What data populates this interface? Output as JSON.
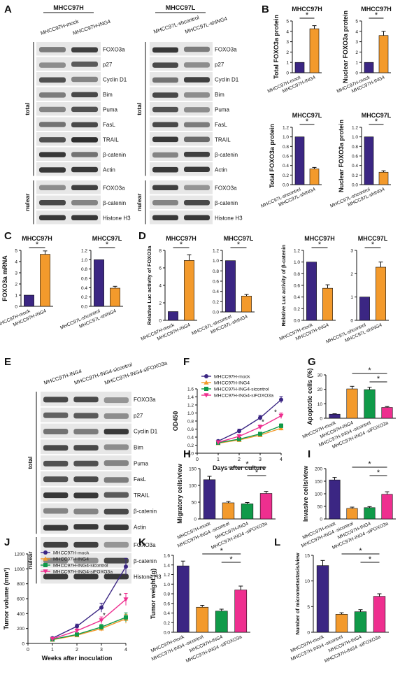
{
  "palette": {
    "purple": "#3b2683",
    "orange": "#f39a2c",
    "green": "#109a49",
    "pink": "#ee2f8f",
    "black": "#111111"
  },
  "panel_letters": [
    "A",
    "B",
    "C",
    "D",
    "E",
    "F",
    "G",
    "H",
    "I",
    "J",
    "K",
    "L"
  ],
  "blots": {
    "A_left": {
      "header": "MHCC97H",
      "lanes": [
        "MHCC97H-mock",
        "MHCC97H-ING4"
      ],
      "total_label": "total",
      "nuclear_label": "nulear",
      "total_proteins": [
        "FOXO3a",
        "p27",
        "Cyclin D1",
        "Bim",
        "Puma",
        "FasL",
        "TRAIL",
        "β-catenin",
        "Actin"
      ],
      "nuclear_proteins": [
        "FOXO3a",
        "β-catenin",
        "Histone H3"
      ]
    },
    "A_right": {
      "header": "MHCC97L",
      "lanes": [
        "MHCC97L-shcontrol",
        "MHCC97L-shING4"
      ],
      "total_label": "total",
      "nuclear_label": "nulear",
      "total_proteins": [
        "FOXO3a",
        "p27",
        "Cyclin D1",
        "Bim",
        "Puma",
        "FasL",
        "TRAIL",
        "β-catenin",
        "Actin"
      ],
      "nuclear_proteins": [
        "FOXO3a",
        "β-catenin",
        "Histone H3"
      ]
    },
    "E": {
      "lanes": [
        "MHCC97H-ING4",
        "MHCC97H-ING4-sicontrol",
        "MHCC97H-ING4-siFOXO3a"
      ],
      "total_label": "total",
      "nuclear_label": "nulear",
      "total_proteins": [
        "FOXO3a",
        "p27",
        "Cyclin D1",
        "Bim",
        "Puma",
        "FasL",
        "TRAIL",
        "β-catenin",
        "Actin"
      ],
      "nuclear_proteins": [
        "FOXO3a",
        "β-catenin",
        "Histone H3"
      ]
    }
  },
  "chart_data": [
    {
      "id": "B1",
      "panel": "B",
      "type": "bar",
      "title": "MHCC97H",
      "ylabel": "Total FOXO3a protein",
      "ylim": [
        0,
        5
      ],
      "yticks": [
        0,
        1,
        2,
        3,
        4,
        5
      ],
      "categories": [
        "MHCC97H-mock",
        "MHCC97H-ING4"
      ],
      "values": [
        1,
        4.25
      ],
      "errors": [
        0,
        0.3
      ],
      "sig": [
        [
          "0",
          "1"
        ]
      ]
    },
    {
      "id": "B2",
      "panel": "B",
      "type": "bar",
      "title": "MHCC97H",
      "ylabel": "Nuclear FOXO3a protein",
      "ylim": [
        0,
        5
      ],
      "yticks": [
        0,
        1,
        2,
        3,
        4,
        5
      ],
      "categories": [
        "MHCC97H-mock",
        "MHCC97H-ING4"
      ],
      "values": [
        1,
        3.6
      ],
      "errors": [
        0,
        0.4
      ],
      "sig": [
        [
          "0",
          "1"
        ]
      ]
    },
    {
      "id": "B3",
      "panel": "B",
      "type": "bar",
      "title": "MHCC97L",
      "ylabel": "Total FOXO3a protein",
      "ylim": [
        0,
        1.2
      ],
      "yticks": [
        "0.0",
        "0.2",
        "0.4",
        "0.6",
        "0.8",
        "1.0",
        "1.2"
      ],
      "categories": [
        "MHCC97L-shcontrol",
        "MHCC97L-shING4"
      ],
      "values": [
        1,
        0.33
      ],
      "errors": [
        0,
        0.03
      ],
      "sig": [
        [
          "0",
          "1"
        ]
      ]
    },
    {
      "id": "B4",
      "panel": "B",
      "type": "bar",
      "title": "MHCC97L",
      "ylabel": "Nuclear FOXO3a protein",
      "ylim": [
        0,
        1.2
      ],
      "yticks": [
        "0.0",
        "0.2",
        "0.4",
        "0.6",
        "0.8",
        "1.0",
        "1.2"
      ],
      "categories": [
        "MHCC97L-shcontrol",
        "MHCC97L-shING4"
      ],
      "values": [
        1,
        0.26
      ],
      "errors": [
        0,
        0.03
      ],
      "sig": [
        [
          "0",
          "1"
        ]
      ]
    },
    {
      "id": "C1",
      "panel": "C",
      "type": "bar",
      "title": "MHCC97H",
      "ylabel": "FOXO3a mRNA",
      "ylim": [
        0,
        5
      ],
      "yticks": [
        0,
        1,
        2,
        3,
        4,
        5
      ],
      "categories": [
        "MHCC97H-mock",
        "MHCC97H-ING4"
      ],
      "values": [
        1,
        4.65
      ],
      "errors": [
        0,
        0.3
      ],
      "sig": [
        [
          "0",
          "1"
        ]
      ]
    },
    {
      "id": "C2",
      "panel": "C",
      "type": "bar",
      "title": "MHCC97L",
      "ylabel": "",
      "ylim": [
        0,
        1.2
      ],
      "yticks": [
        "0.0",
        "0.2",
        "0.4",
        "0.6",
        "0.8",
        "1.0",
        "1.2"
      ],
      "categories": [
        "MHCC97L-shcontrol",
        "MHCC97L-shING4"
      ],
      "values": [
        1,
        0.39
      ],
      "errors": [
        0,
        0.04
      ],
      "sig": [
        [
          "0",
          "1"
        ]
      ]
    },
    {
      "id": "D1",
      "panel": "D",
      "type": "bar",
      "title": "MHCC97H",
      "ylabel": "Relative Luc activity of FOXO3a",
      "ylim": [
        0,
        8
      ],
      "yticks": [
        0,
        2,
        4,
        6,
        8
      ],
      "categories": [
        "MHCC97H-mock",
        "MHCC97H-ING4"
      ],
      "values": [
        1,
        6.85
      ],
      "errors": [
        0,
        0.65
      ],
      "sig": [
        [
          "0",
          "1"
        ]
      ]
    },
    {
      "id": "D2",
      "panel": "D",
      "type": "bar",
      "title": "MHCC97L",
      "ylabel": "",
      "ylim": [
        0,
        1.2
      ],
      "yticks": [
        "0.0",
        "0.2",
        "0.4",
        "0.6",
        "0.8",
        "1.0",
        "1.2"
      ],
      "categories": [
        "MHCC97L-shcontrol",
        "MHCC97L-shING4"
      ],
      "values": [
        1,
        0.31
      ],
      "errors": [
        0,
        0.03
      ],
      "sig": [
        [
          "0",
          "1"
        ]
      ]
    },
    {
      "id": "D3",
      "panel": "D",
      "type": "bar",
      "title": "MHCC97H",
      "ylabel": "Relative Luc activity of β-catenin",
      "ylim": [
        0,
        1.2
      ],
      "yticks": [
        "0.0",
        "0.2",
        "0.4",
        "0.6",
        "0.8",
        "1.0",
        "1.2"
      ],
      "categories": [
        "MHCC97H-mock",
        "MHCC97H-ING4"
      ],
      "values": [
        1,
        0.55
      ],
      "errors": [
        0,
        0.06
      ],
      "sig": [
        [
          "0",
          "1"
        ]
      ]
    },
    {
      "id": "D4",
      "panel": "D",
      "type": "bar",
      "title": "MHCC97L",
      "ylabel": "",
      "ylim": [
        0,
        3
      ],
      "yticks": [
        0,
        1,
        2,
        3
      ],
      "categories": [
        "MHCC97L-shcontrol",
        "MHCC97L-shING4"
      ],
      "values": [
        1,
        2.28
      ],
      "errors": [
        0,
        0.22
      ],
      "sig": [
        [
          "0",
          "1"
        ]
      ]
    },
    {
      "id": "F",
      "panel": "F",
      "type": "line",
      "title": "",
      "xlabel": "Days after culture",
      "ylabel": "OD450",
      "xlim": [
        0,
        4
      ],
      "ylim": [
        0,
        1.6
      ],
      "xticks": [
        0,
        1,
        2,
        3,
        4
      ],
      "yticks": [
        "0.0",
        "0.2",
        "0.4",
        "0.6",
        "0.8",
        "1.0",
        "1.2",
        "1.4",
        "1.6"
      ],
      "x": [
        1,
        2,
        3,
        4
      ],
      "series": [
        {
          "name": "MHCC97H-mock",
          "color": "#3b2683",
          "marker": "circle",
          "values": [
            0.3,
            0.55,
            0.88,
            1.33
          ],
          "errors": [
            0.03,
            0.05,
            0.06,
            0.08
          ]
        },
        {
          "name": "MHCC97H-ING4",
          "color": "#f39a2c",
          "marker": "triangle-up",
          "values": [
            0.25,
            0.33,
            0.45,
            0.62
          ],
          "errors": [
            0.02,
            0.03,
            0.04,
            0.05
          ]
        },
        {
          "name": "MHCC97H-ING4-sicontrol",
          "color": "#109a49",
          "marker": "square",
          "values": [
            0.26,
            0.35,
            0.48,
            0.68
          ],
          "errors": [
            0.02,
            0.03,
            0.04,
            0.05
          ]
        },
        {
          "name": "MHCC97H-ING4-siFOXO3a",
          "color": "#ee2f8f",
          "marker": "triangle-down",
          "values": [
            0.27,
            0.42,
            0.65,
            0.93
          ],
          "errors": [
            0.03,
            0.04,
            0.05,
            0.07
          ]
        }
      ],
      "sig_text": [
        "*",
        "*"
      ]
    },
    {
      "id": "G",
      "panel": "G",
      "type": "bar",
      "title": "",
      "ylabel": "Apoptotic cells (%)",
      "ylim": [
        0,
        30
      ],
      "yticks": [
        0,
        10,
        20,
        30
      ],
      "categories": [
        "MHCC97H-mock",
        "MHCC97H-ING4",
        "MHCC97H-ING4 -sicontrol",
        "MHCC97H-ING4 -siFOXO3a"
      ],
      "values": [
        2.8,
        20.3,
        19.8,
        7.5
      ],
      "errors": [
        0.3,
        1.8,
        1.6,
        0.6
      ],
      "sig": [
        [
          "1",
          "3"
        ],
        [
          "2",
          "3"
        ]
      ]
    },
    {
      "id": "H",
      "panel": "H",
      "type": "bar",
      "title": "",
      "ylabel": "Migratory cells/view",
      "ylim": [
        0,
        150
      ],
      "yticks": [
        0,
        50,
        100,
        150
      ],
      "categories": [
        "MHCC97H-mock",
        "MHCC97H-ING4 -sicontrol",
        "MHCC97H-ING4",
        "MHCC97H-ING4 -siFOXO3a"
      ],
      "values": [
        117,
        48,
        45,
        76
      ],
      "errors": [
        10,
        4,
        4,
        6
      ],
      "sig": [
        [
          "1",
          "3"
        ],
        [
          "2",
          "3"
        ]
      ]
    },
    {
      "id": "I",
      "panel": "I",
      "type": "bar",
      "title": "",
      "ylabel": "Invasive cells/view",
      "ylim": [
        0,
        200
      ],
      "yticks": [
        0,
        50,
        100,
        150,
        200
      ],
      "categories": [
        "MHCC97H-mock",
        "MHCC97H-ING4 -sicontrol",
        "MHCC97H-ING4",
        "MHCC97H-ING4 -siFOXO3a"
      ],
      "values": [
        155,
        42,
        45,
        98
      ],
      "errors": [
        10,
        5,
        4,
        10
      ],
      "sig": [
        [
          "1",
          "3"
        ],
        [
          "2",
          "3"
        ]
      ]
    },
    {
      "id": "J",
      "panel": "J",
      "type": "line",
      "title": "",
      "xlabel": "Weeks after inoculation",
      "ylabel": "Tumor volume (mm³)",
      "xlim": [
        0,
        4
      ],
      "ylim": [
        0,
        1200
      ],
      "xticks": [
        0,
        1,
        2,
        3,
        4
      ],
      "yticks": [
        0,
        200,
        400,
        600,
        800,
        1000,
        1200
      ],
      "x": [
        1,
        2,
        3,
        4
      ],
      "series": [
        {
          "name": "MHCC97H-mock",
          "color": "#3b2683",
          "marker": "circle",
          "values": [
            70,
            230,
            480,
            1030
          ],
          "errors": [
            15,
            30,
            60,
            110
          ]
        },
        {
          "name": "MHCC97H-ING4",
          "color": "#f39a2c",
          "marker": "triangle-up",
          "values": [
            50,
            110,
            200,
            330
          ],
          "errors": [
            10,
            20,
            35,
            60
          ]
        },
        {
          "name": "MHCC97H-ING4-sicontrol",
          "color": "#109a49",
          "marker": "square",
          "values": [
            55,
            120,
            220,
            350
          ],
          "errors": [
            10,
            20,
            35,
            60
          ]
        },
        {
          "name": "MHCC97H-ING4-siFOXO3a",
          "color": "#ee2f8f",
          "marker": "triangle-down",
          "values": [
            60,
            170,
            310,
            590
          ],
          "errors": [
            12,
            25,
            45,
            80
          ]
        }
      ],
      "sig_text": [
        "*",
        "*"
      ]
    },
    {
      "id": "K",
      "panel": "K",
      "type": "bar",
      "title": "",
      "ylabel": "Tumor weight (g)",
      "ylim": [
        0,
        1.6
      ],
      "yticks": [
        "0.0",
        "0.2",
        "0.4",
        "0.6",
        "0.8",
        "1.0",
        "1.2",
        "1.4",
        "1.6"
      ],
      "categories": [
        "MHCC97H-mock",
        "MHCC97H-ING4 -sicontrol",
        "MHCC97H-ING4",
        "MHCC97H-ING4 -siFOXO3a"
      ],
      "values": [
        1.38,
        0.52,
        0.44,
        0.88
      ],
      "errors": [
        0.1,
        0.04,
        0.04,
        0.08
      ],
      "sig": [
        [
          "1",
          "3"
        ],
        [
          "2",
          "3"
        ]
      ]
    },
    {
      "id": "L",
      "panel": "L",
      "type": "bar",
      "title": "",
      "ylabel": "Number of micrometastasis/view",
      "ylim": [
        0,
        15
      ],
      "yticks": [
        0,
        5,
        10,
        15
      ],
      "categories": [
        "MHCC97H-mock",
        "MHCC97H-ING4 -sicontrol",
        "MHCC97H-ING4",
        "MHCC97H-ING4 -siFOXO3a"
      ],
      "values": [
        13,
        3.5,
        4,
        7
      ],
      "errors": [
        1,
        0.3,
        0.4,
        0.5
      ],
      "sig": [
        [
          "1",
          "3"
        ],
        [
          "2",
          "3"
        ]
      ]
    }
  ]
}
